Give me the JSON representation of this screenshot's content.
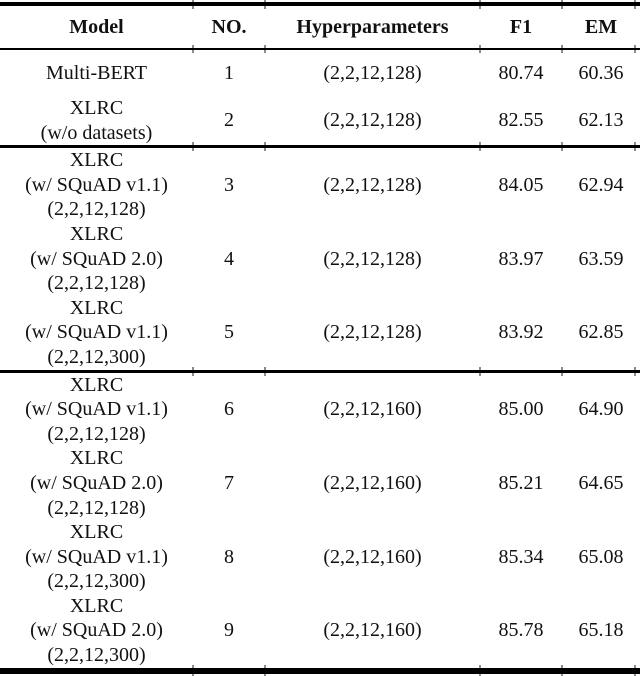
{
  "colors": {
    "rule": "#000000",
    "text": "#111111",
    "background": "#ffffff"
  },
  "table": {
    "columns": [
      {
        "label": "Model"
      },
      {
        "label": "NO."
      },
      {
        "label": "Hyperparameters"
      },
      {
        "label": "F1"
      },
      {
        "label": "EM"
      }
    ],
    "groups": [
      {
        "rows": [
          {
            "model_lines": [
              "Multi-BERT"
            ],
            "no": "1",
            "hyperparameters": "(2,2,12,128)",
            "f1": "80.74",
            "em": "60.36"
          },
          {
            "model_lines": [
              "XLRC",
              "(w/o datasets)"
            ],
            "no": "2",
            "hyperparameters": "(2,2,12,128)",
            "f1": "82.55",
            "em": "62.13"
          }
        ]
      },
      {
        "rows": [
          {
            "model_lines": [
              "XLRC",
              "(w/ SQuAD v1.1)",
              "(2,2,12,128)"
            ],
            "no": "3",
            "hyperparameters": "(2,2,12,128)",
            "f1": "84.05",
            "em": "62.94"
          },
          {
            "model_lines": [
              "XLRC",
              "(w/ SQuAD 2.0)",
              "(2,2,12,128)"
            ],
            "no": "4",
            "hyperparameters": "(2,2,12,128)",
            "f1": "83.97",
            "em": "63.59"
          },
          {
            "model_lines": [
              "XLRC",
              "(w/ SQuAD v1.1)",
              "(2,2,12,300)"
            ],
            "no": "5",
            "hyperparameters": "(2,2,12,128)",
            "f1": "83.92",
            "em": "62.85"
          }
        ]
      },
      {
        "rows": [
          {
            "model_lines": [
              "XLRC",
              "(w/ SQuAD v1.1)",
              "(2,2,12,128)"
            ],
            "no": "6",
            "hyperparameters": "(2,2,12,160)",
            "f1": "85.00",
            "em": "64.90"
          },
          {
            "model_lines": [
              "XLRC",
              "(w/ SQuAD 2.0)",
              "(2,2,12,128)"
            ],
            "no": "7",
            "hyperparameters": "(2,2,12,160)",
            "f1": "85.21",
            "em": "64.65"
          },
          {
            "model_lines": [
              "XLRC",
              "(w/ SQuAD v1.1)",
              "(2,2,12,300)"
            ],
            "no": "8",
            "hyperparameters": "(2,2,12,160)",
            "f1": "85.34",
            "em": "65.08"
          },
          {
            "model_lines": [
              "XLRC",
              "(w/ SQuAD 2.0)",
              "(2,2,12,300)"
            ],
            "no": "9",
            "hyperparameters": "(2,2,12,160)",
            "f1": "85.78",
            "em": "65.18"
          }
        ]
      }
    ]
  }
}
